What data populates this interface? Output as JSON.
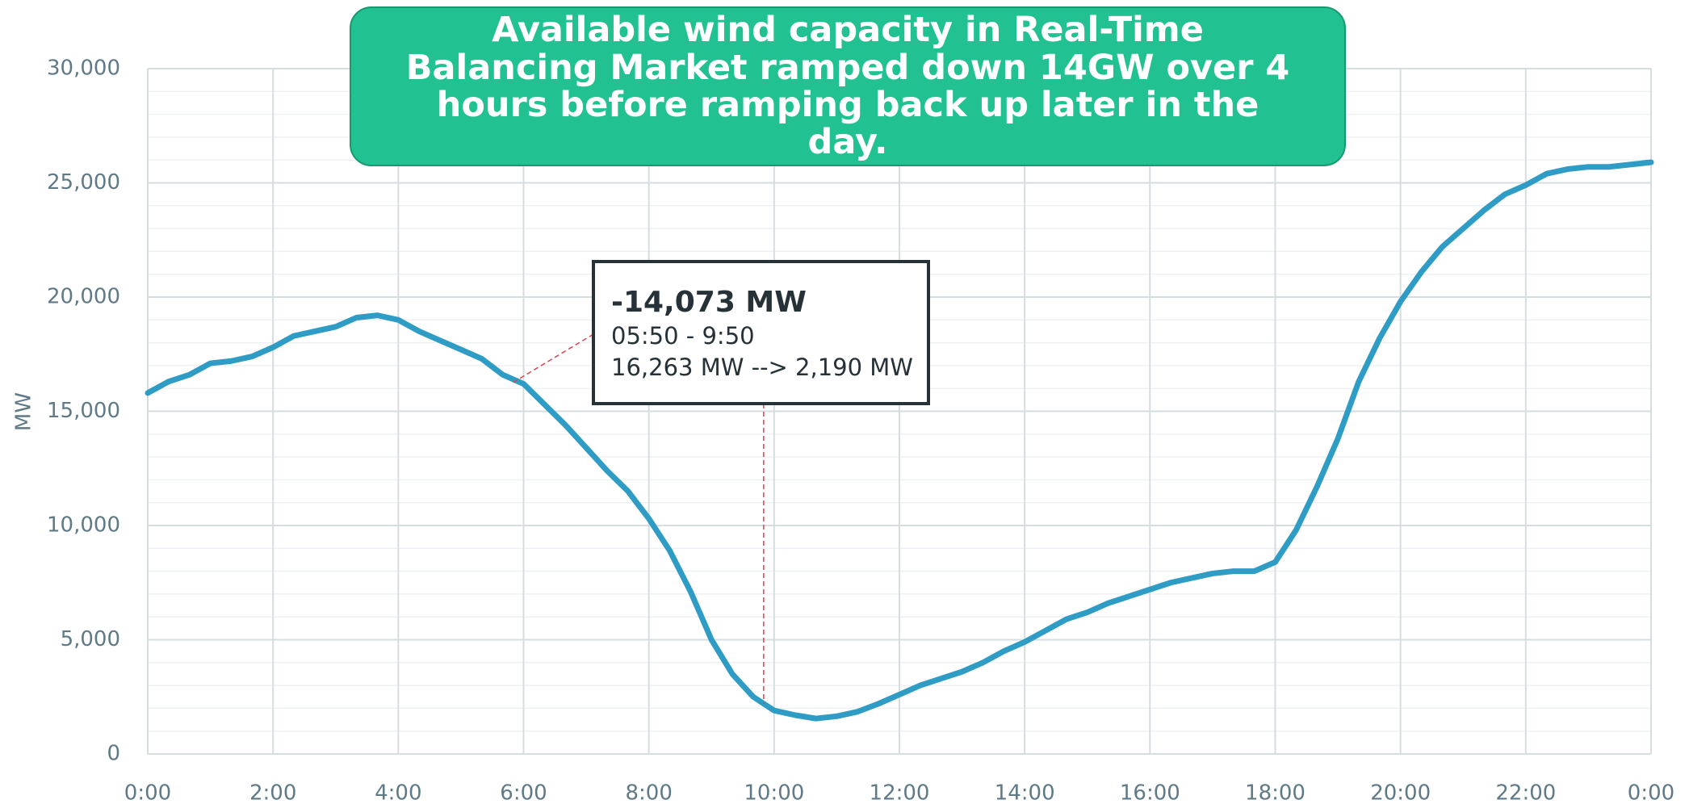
{
  "chart_data": {
    "type": "line",
    "title": "Available wind capacity in Real-Time Balancing Market ramped down 14GW over 4 hours before ramping back up later in the day.",
    "y_label": "MW",
    "x": [
      0,
      0.333,
      0.667,
      1,
      1.333,
      1.667,
      2,
      2.333,
      2.667,
      3,
      3.333,
      3.667,
      4,
      4.333,
      4.667,
      5,
      5.333,
      5.667,
      6,
      6.333,
      6.667,
      7,
      7.333,
      7.667,
      8,
      8.333,
      8.667,
      9,
      9.333,
      9.667,
      10,
      10.333,
      10.667,
      11,
      11.333,
      11.667,
      12,
      12.333,
      12.667,
      13,
      13.333,
      13.667,
      14,
      14.333,
      14.667,
      15,
      15.333,
      15.667,
      16,
      16.333,
      16.667,
      17,
      17.333,
      17.667,
      18,
      18.333,
      18.667,
      19,
      19.333,
      19.667,
      20,
      20.333,
      20.667,
      21,
      21.333,
      21.667,
      22,
      22.333,
      22.667,
      23,
      23.333,
      23.667,
      24
    ],
    "series": [
      {
        "name": "MW",
        "color": "#2e9cc4",
        "values": [
          15800,
          16300,
          16600,
          17100,
          17200,
          17400,
          17800,
          18300,
          18500,
          18700,
          19100,
          19200,
          19000,
          18500,
          18100,
          17700,
          17300,
          16600,
          16200,
          15300,
          14400,
          13400,
          12400,
          11500,
          10300,
          8900,
          7100,
          5000,
          3500,
          2500,
          1900,
          1700,
          1550,
          1650,
          1850,
          2200,
          2600,
          3000,
          3300,
          3600,
          4000,
          4500,
          4900,
          5400,
          5900,
          6200,
          6600,
          6900,
          7200,
          7500,
          7700,
          7900,
          8000,
          8000,
          8400,
          9800,
          11700,
          13800,
          16300,
          18200,
          19800,
          21100,
          22200,
          23000,
          23800,
          24500,
          24900,
          25400,
          25600,
          25700,
          25700,
          25800,
          25900
        ]
      }
    ],
    "xlim": [
      0,
      24
    ],
    "xticks": [
      {
        "value": 0,
        "label": "0:00"
      },
      {
        "value": 2,
        "label": "2:00"
      },
      {
        "value": 4,
        "label": "4:00"
      },
      {
        "value": 6,
        "label": "6:00"
      },
      {
        "value": 8,
        "label": "8:00"
      },
      {
        "value": 10,
        "label": "10:00"
      },
      {
        "value": 12,
        "label": "12:00"
      },
      {
        "value": 14,
        "label": "14:00"
      },
      {
        "value": 16,
        "label": "16:00"
      },
      {
        "value": 18,
        "label": "18:00"
      },
      {
        "value": 20,
        "label": "20:00"
      },
      {
        "value": 22,
        "label": "22:00"
      },
      {
        "value": 24,
        "label": "0:00"
      }
    ],
    "ylim": [
      0,
      30000
    ],
    "yticks": [
      0,
      {
        "value": 5000,
        "label": "5,000"
      },
      {
        "value": 10000,
        "label": "10,000"
      },
      {
        "value": 15000,
        "label": "15,000"
      },
      {
        "value": 20000,
        "label": "20,000"
      },
      {
        "value": 25000,
        "label": "25,000"
      },
      {
        "value": 30000,
        "label": "30,000"
      }
    ],
    "grid": true,
    "annotation": {
      "label": "-14,073 MW",
      "range": "05:50 - 9:50",
      "detail": "16,263 MW --> 2,190 MW",
      "start": {
        "x": 5.833,
        "y": 16263
      },
      "end": {
        "x": 9.833,
        "y": 2190
      }
    }
  }
}
